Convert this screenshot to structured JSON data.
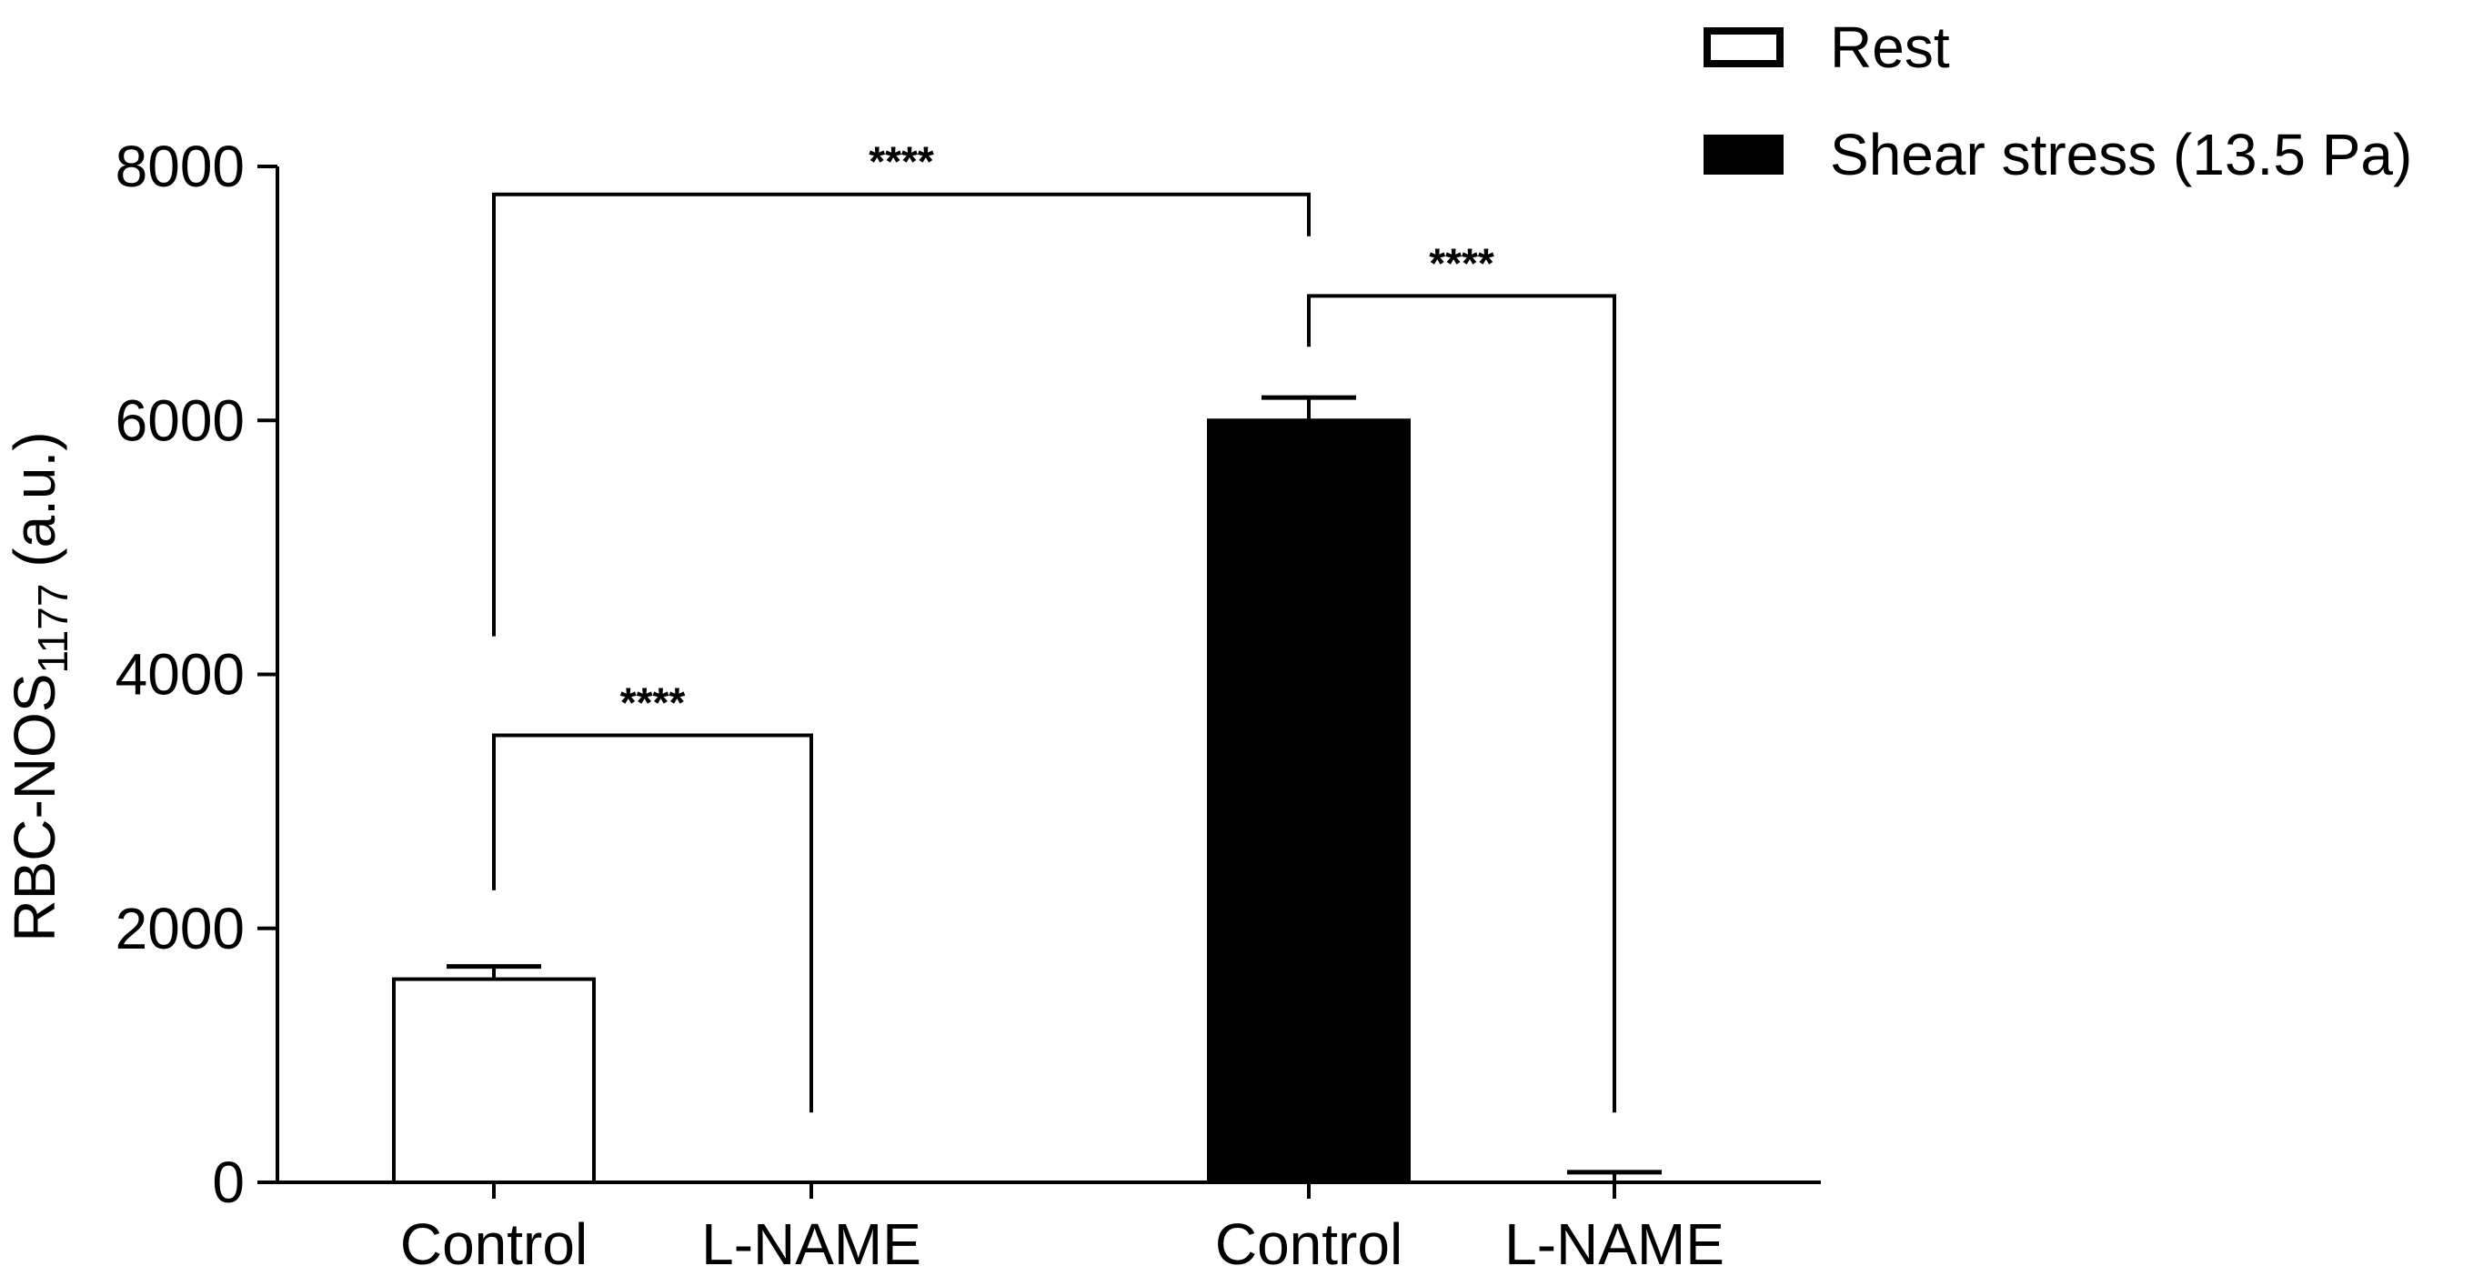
{
  "chart_data": {
    "type": "bar",
    "ylabel": {
      "main": "RBC-NOS",
      "subscript": "1177",
      "unit": " (a.u.)"
    },
    "ylim": [
      0,
      8000
    ],
    "yticks": [
      "0",
      "2000",
      "4000",
      "6000",
      "8000"
    ],
    "categories": [
      "Control",
      "L-NAME",
      "Control",
      "L-NAME"
    ],
    "bars": [
      {
        "category": "Control",
        "series": "Rest",
        "value": 1600,
        "error": 100
      },
      {
        "category": "L-NAME",
        "series": "Rest",
        "value": 0,
        "error": 0
      },
      {
        "category": "Control",
        "series": "Shear stress (13.5 Pa)",
        "value": 6000,
        "error": 180
      },
      {
        "category": "L-NAME",
        "series": "Shear stress (13.5 Pa)",
        "value": 0,
        "error": 80
      }
    ],
    "series": [
      {
        "name": "Rest",
        "fill": "#ffffff",
        "stroke": "#000000"
      },
      {
        "name": "Shear stress (13.5 Pa)",
        "fill": "#000000",
        "stroke": "#000000"
      }
    ],
    "legend_position": "top-right",
    "grid": false,
    "significance": [
      {
        "from": 0,
        "to": 2,
        "label": "****",
        "y": 7780,
        "left_end": 4300,
        "right_end": 7450
      },
      {
        "from": 2,
        "to": 3,
        "label": "****",
        "y": 6980,
        "left_end": 6580,
        "right_end": 550
      },
      {
        "from": 0,
        "to": 1,
        "label": "****",
        "y": 3520,
        "left_end": 2300,
        "right_end": 550
      }
    ]
  }
}
